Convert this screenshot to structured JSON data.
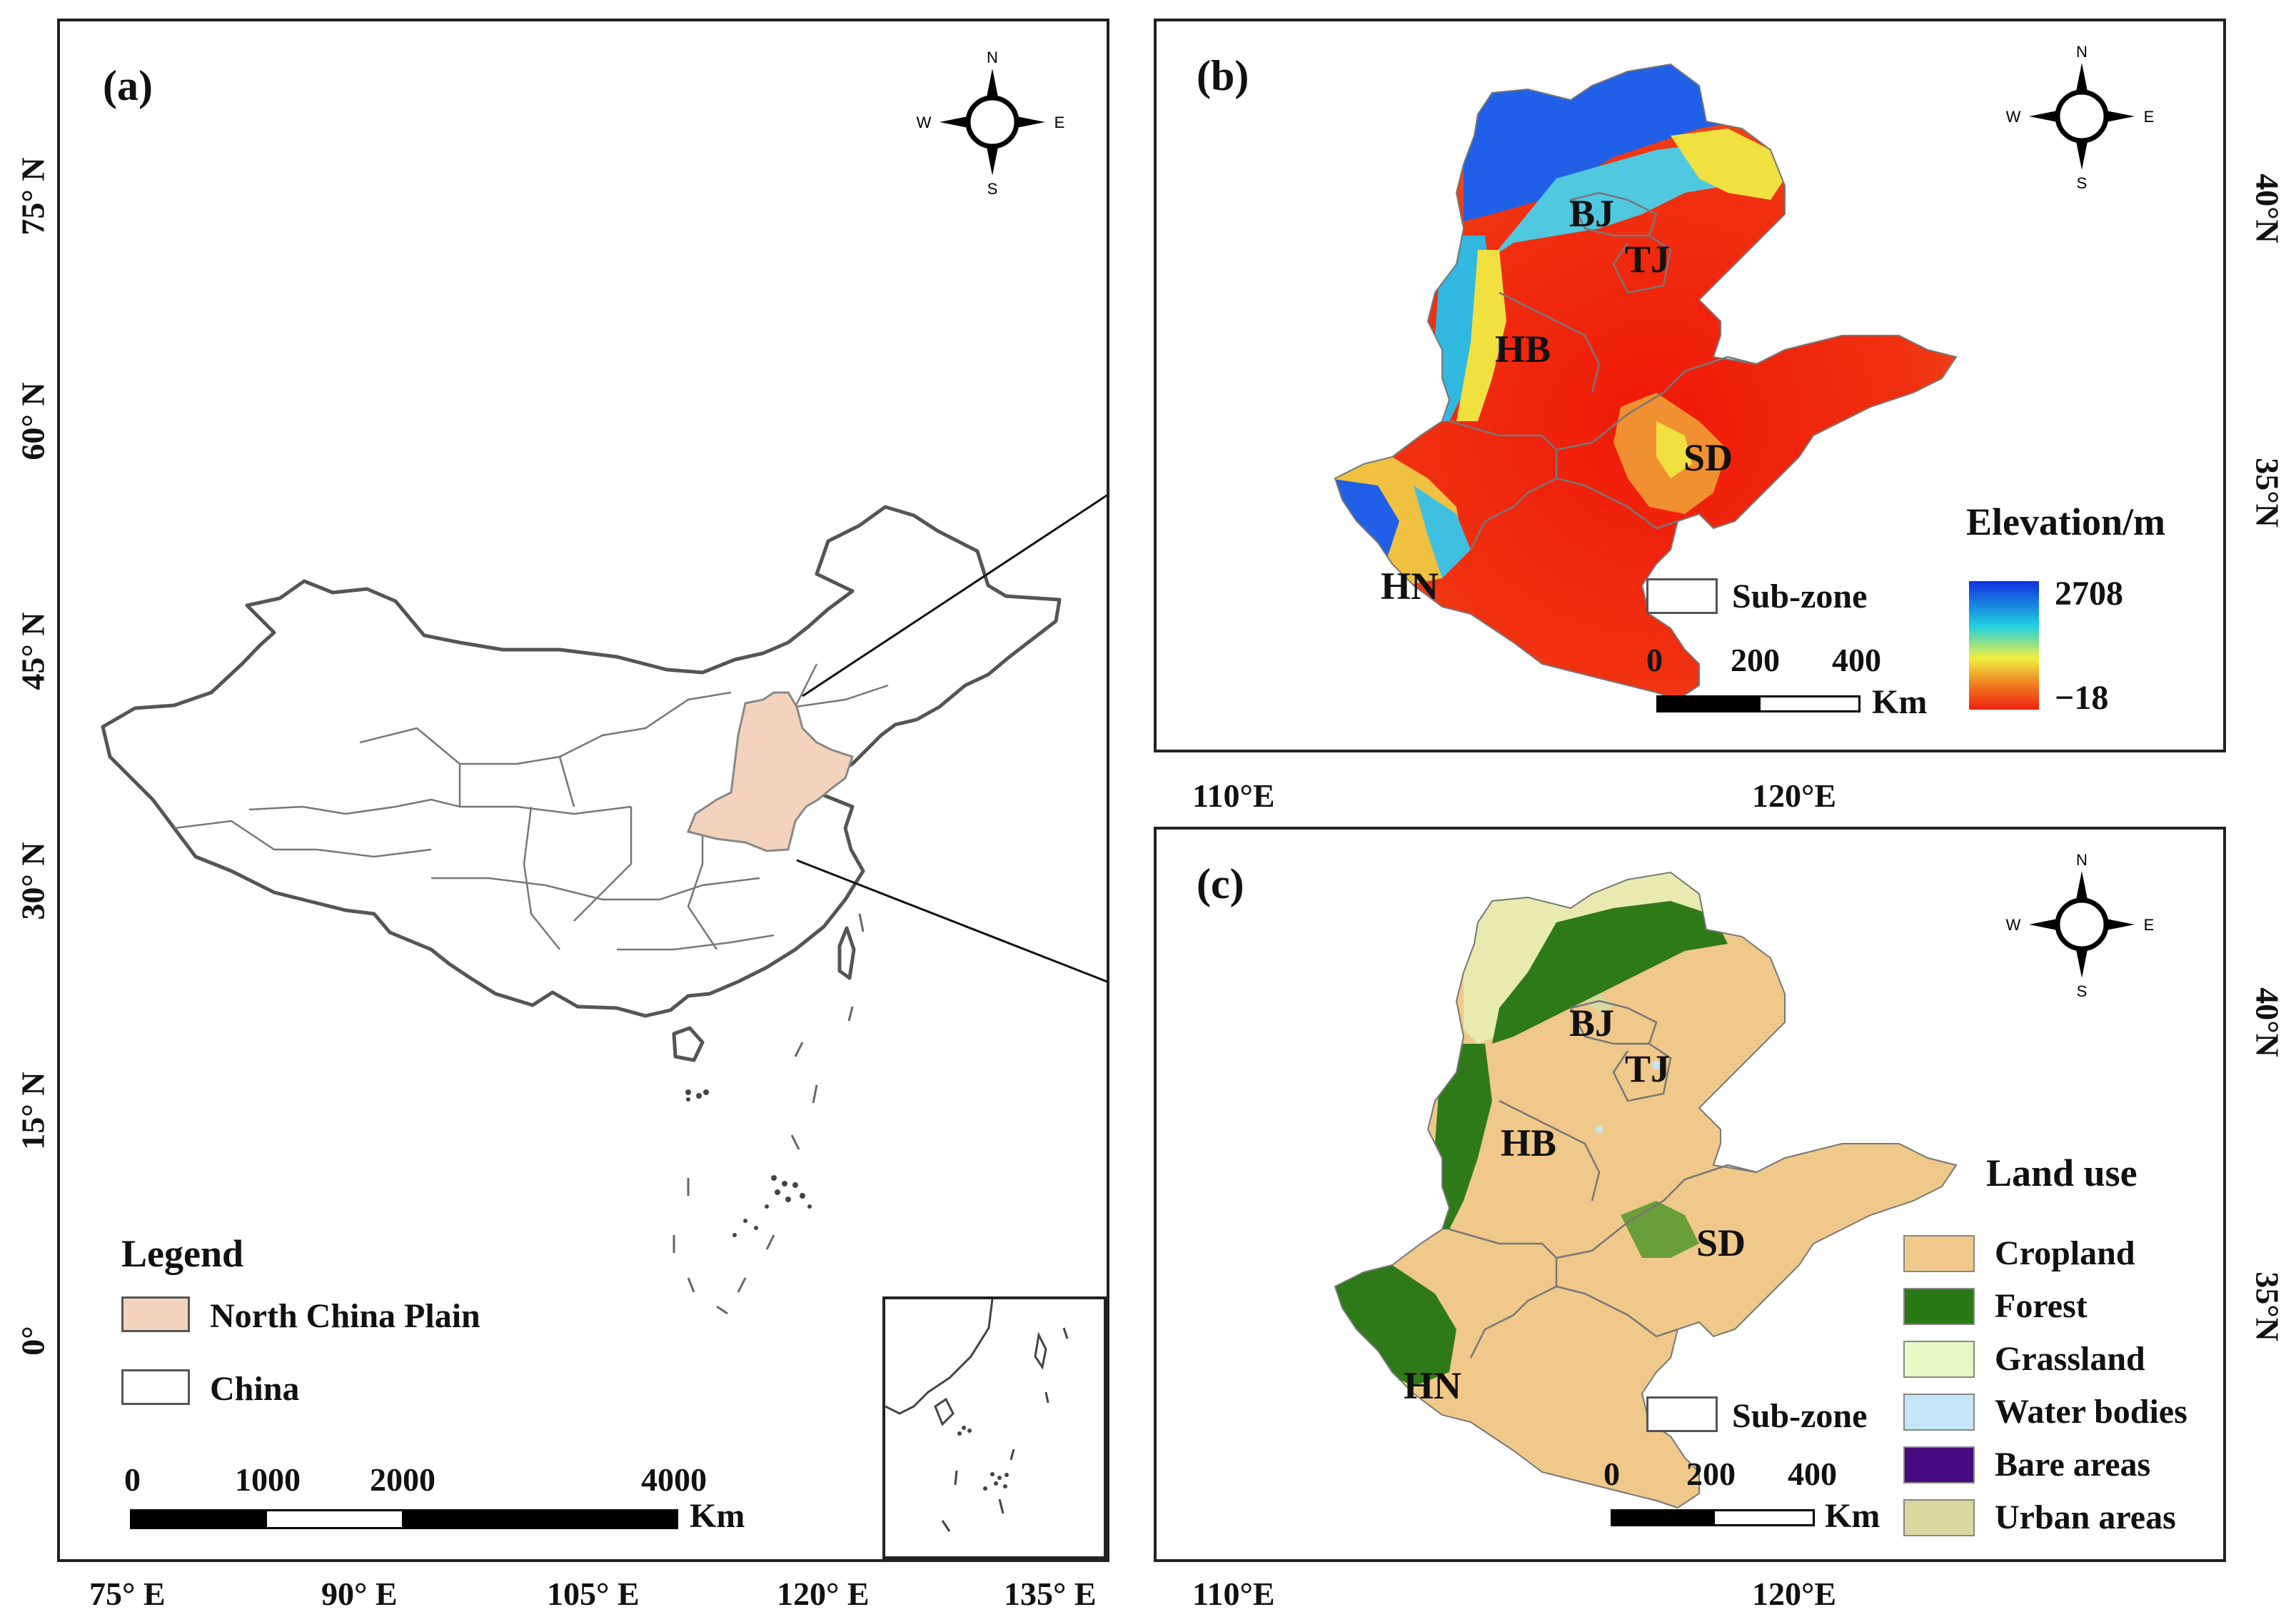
{
  "panels": {
    "a": {
      "label": "(a)",
      "lat_ticks": [
        "75° N",
        "60° N",
        "45° N",
        "30° N",
        "15° N",
        "0°"
      ],
      "lon_ticks": [
        "75° E",
        "90° E",
        "105° E",
        "120° E",
        "135° E"
      ],
      "legend": {
        "title": "Legend",
        "items": [
          {
            "label": "North China Plain",
            "color": "#f3d3bd"
          },
          {
            "label": "China",
            "color": "#ffffff"
          }
        ]
      },
      "scale": {
        "ticks": [
          "0",
          "1000",
          "2000",
          "4000"
        ],
        "unit": "Km"
      }
    },
    "b": {
      "label": "(b)",
      "regions": [
        "BJ",
        "TJ",
        "HB",
        "SD",
        "HN"
      ],
      "lat_ticks": [
        "40°N",
        "35°N"
      ],
      "lon_ticks": [
        "110°E",
        "120°E"
      ],
      "subzone_label": "Sub-zone",
      "scale": {
        "ticks": [
          "0",
          "200",
          "400"
        ],
        "unit": "Km"
      },
      "colorbar": {
        "title": "Elevation/m",
        "max": "2708",
        "min": "−18",
        "colors": [
          "#1030e0",
          "#20d0e0",
          "#f0f040",
          "#f08020",
          "#f02010"
        ]
      }
    },
    "c": {
      "label": "(c)",
      "regions": [
        "BJ",
        "TJ",
        "HB",
        "SD",
        "HN"
      ],
      "lat_ticks": [
        "40°N",
        "35°N"
      ],
      "lon_ticks": [
        "110°E",
        "120°E"
      ],
      "subzone_label": "Sub-zone",
      "scale": {
        "ticks": [
          "0",
          "200",
          "400"
        ],
        "unit": "Km"
      },
      "legend": {
        "title": "Land use",
        "items": [
          {
            "label": "Cropland",
            "color": "#efc88a"
          },
          {
            "label": "Forest",
            "color": "#2a7a16"
          },
          {
            "label": "Grassland",
            "color": "#e6f8c4"
          },
          {
            "label": "Water bodies",
            "color": "#c4e6f8"
          },
          {
            "label": "Bare areas",
            "color": "#4a0a80"
          },
          {
            "label": "Urban areas",
            "color": "#d8d8a0"
          }
        ]
      }
    }
  },
  "compass": {
    "n": "N",
    "s": "S",
    "e": "E",
    "w": "W"
  }
}
